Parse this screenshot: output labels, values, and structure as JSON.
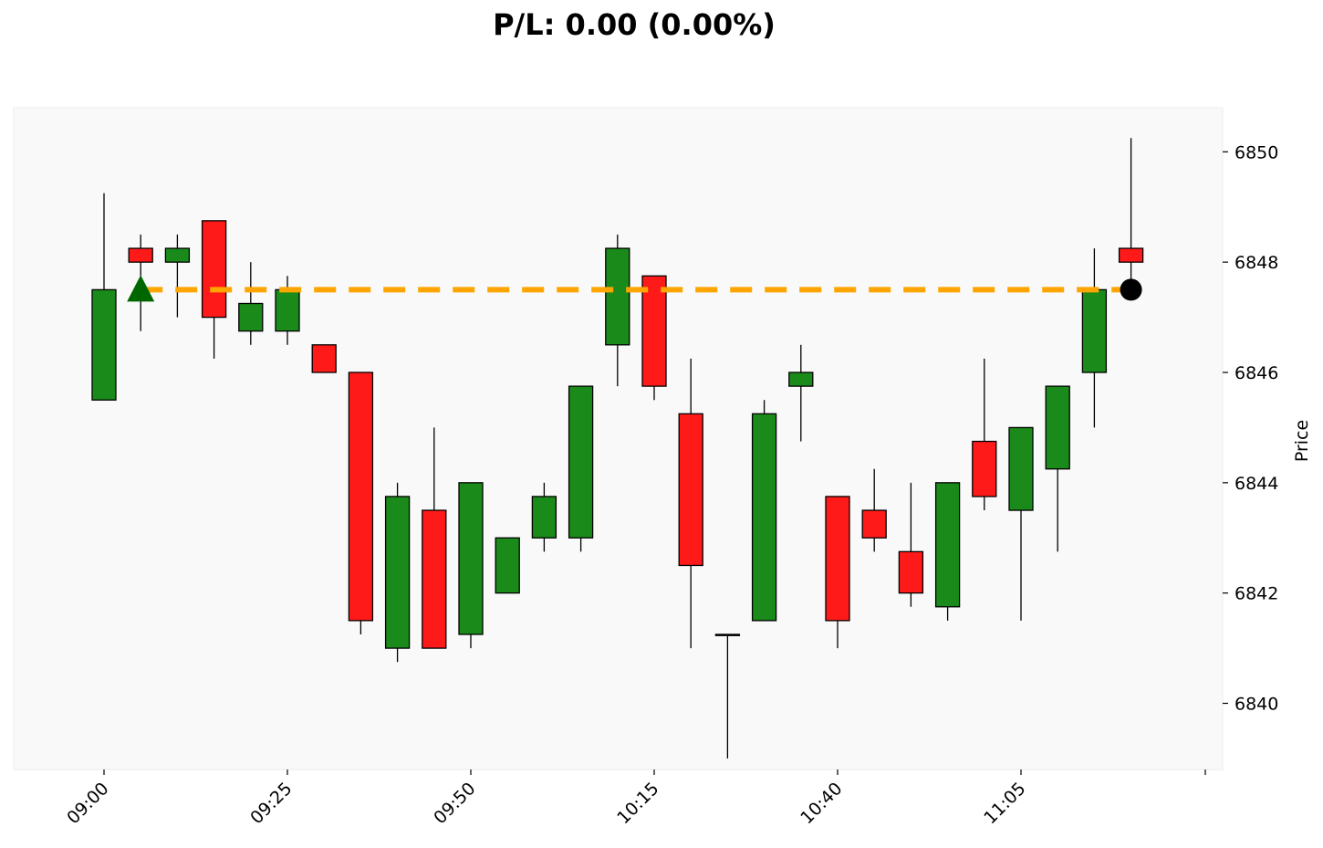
{
  "chart_data": {
    "type": "candlestick",
    "title": "P/L: 0.00 (0.00%)",
    "xlabel": "",
    "ylabel": "Price",
    "ylim": [
      6838.8,
      6850.8
    ],
    "y_ticks": [
      6840,
      6842,
      6844,
      6846,
      6848,
      6850
    ],
    "x_ticks": [
      "09:00",
      "09:25",
      "09:50",
      "10:15",
      "10:40",
      "11:05"
    ],
    "grid": false,
    "colors": {
      "up": "#1a8a1a",
      "down": "#ff1a1a",
      "wick": "#000000",
      "entry_line": "#ffa500",
      "entry_marker": "#006600",
      "exit_marker": "#000000",
      "plot_bg": "#f9f9f9"
    },
    "candles": [
      {
        "time": "09:00",
        "open": 6845.5,
        "high": 6849.25,
        "low": 6845.5,
        "close": 6847.5
      },
      {
        "time": "09:05",
        "open": 6848.25,
        "high": 6848.5,
        "low": 6846.75,
        "close": 6848.0
      },
      {
        "time": "09:10",
        "open": 6848.0,
        "high": 6848.5,
        "low": 6847.0,
        "close": 6848.25
      },
      {
        "time": "09:15",
        "open": 6848.75,
        "high": 6848.75,
        "low": 6846.25,
        "close": 6847.0
      },
      {
        "time": "09:20",
        "open": 6846.75,
        "high": 6848.0,
        "low": 6846.5,
        "close": 6847.25
      },
      {
        "time": "09:25",
        "open": 6846.75,
        "high": 6847.75,
        "low": 6846.5,
        "close": 6847.5
      },
      {
        "time": "09:30",
        "open": 6846.5,
        "high": 6846.5,
        "low": 6846.0,
        "close": 6846.0
      },
      {
        "time": "09:35",
        "open": 6846.0,
        "high": 6846.0,
        "low": 6841.25,
        "close": 6841.5
      },
      {
        "time": "09:40",
        "open": 6841.0,
        "high": 6844.0,
        "low": 6840.75,
        "close": 6843.75
      },
      {
        "time": "09:45",
        "open": 6843.5,
        "high": 6845.0,
        "low": 6841.0,
        "close": 6841.0
      },
      {
        "time": "09:50",
        "open": 6841.25,
        "high": 6844.0,
        "low": 6841.0,
        "close": 6844.0
      },
      {
        "time": "09:55",
        "open": 6842.0,
        "high": 6843.0,
        "low": 6842.0,
        "close": 6843.0
      },
      {
        "time": "10:00",
        "open": 6843.0,
        "high": 6844.0,
        "low": 6842.75,
        "close": 6843.75
      },
      {
        "time": "10:05",
        "open": 6843.0,
        "high": 6845.75,
        "low": 6842.75,
        "close": 6845.75
      },
      {
        "time": "10:10",
        "open": 6846.5,
        "high": 6848.5,
        "low": 6845.75,
        "close": 6848.25
      },
      {
        "time": "10:15",
        "open": 6847.75,
        "high": 6847.75,
        "low": 6845.5,
        "close": 6845.75
      },
      {
        "time": "10:20",
        "open": 6845.25,
        "high": 6846.25,
        "low": 6841.0,
        "close": 6842.5
      },
      {
        "time": "10:25",
        "open": 6841.25,
        "high": 6841.25,
        "low": 6839.0,
        "close": 6841.25
      },
      {
        "time": "10:30",
        "open": 6841.5,
        "high": 6845.5,
        "low": 6841.5,
        "close": 6845.25
      },
      {
        "time": "10:35",
        "open": 6845.75,
        "high": 6846.5,
        "low": 6844.75,
        "close": 6846.0
      },
      {
        "time": "10:40",
        "open": 6843.75,
        "high": 6843.75,
        "low": 6841.0,
        "close": 6841.5
      },
      {
        "time": "10:45",
        "open": 6843.5,
        "high": 6844.25,
        "low": 6842.75,
        "close": 6843.0
      },
      {
        "time": "10:50",
        "open": 6842.75,
        "high": 6844.0,
        "low": 6841.75,
        "close": 6842.0
      },
      {
        "time": "10:55",
        "open": 6841.75,
        "high": 6844.0,
        "low": 6841.5,
        "close": 6844.0
      },
      {
        "time": "11:00",
        "open": 6844.75,
        "high": 6846.25,
        "low": 6843.5,
        "close": 6843.75
      },
      {
        "time": "11:05",
        "open": 6843.5,
        "high": 6845.0,
        "low": 6841.5,
        "close": 6845.0
      },
      {
        "time": "11:10",
        "open": 6844.25,
        "high": 6845.75,
        "low": 6842.75,
        "close": 6845.75
      },
      {
        "time": "11:15",
        "open": 6846.0,
        "high": 6848.25,
        "low": 6845.0,
        "close": 6847.5
      },
      {
        "time": "11:20",
        "open": 6848.25,
        "high": 6850.25,
        "low": 6847.5,
        "close": 6848.0
      }
    ],
    "entry_line": {
      "price": 6847.5,
      "start_time": "09:05",
      "end_time": "11:20",
      "style": "dashed"
    },
    "entry_marker": {
      "time": "09:05",
      "price": 6847.5,
      "shape": "triangle-up"
    },
    "exit_marker": {
      "time": "11:20",
      "price": 6847.5,
      "shape": "circle"
    }
  }
}
